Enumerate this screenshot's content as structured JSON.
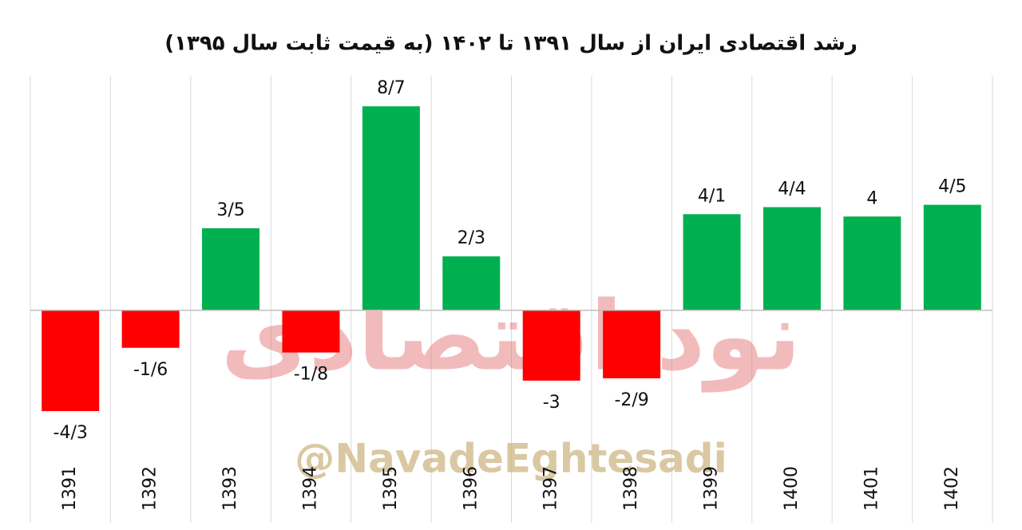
{
  "chart_data": {
    "type": "bar",
    "title": "رشد اقتصادی ایران از سال ۱۳۹۱ تا ۱۴۰۲ (به قیمت ثابت سال ۱۳۹۵)",
    "categories": [
      "1391",
      "1392",
      "1393",
      "1394",
      "1395",
      "1396",
      "1397",
      "1398",
      "1399",
      "1400",
      "1401",
      "1402"
    ],
    "values": [
      -4.3,
      -1.6,
      3.5,
      -1.8,
      8.7,
      2.3,
      -3,
      -2.9,
      4.1,
      4.4,
      4,
      4.5
    ],
    "value_labels": [
      "-4/3",
      "-1/6",
      "3/5",
      "-1/8",
      "8/7",
      "2/3",
      "-3",
      "-2/9",
      "4/1",
      "4/4",
      "4",
      "4/5"
    ],
    "colors": [
      "#ff0000",
      "#ff0000",
      "#00b050",
      "#ff0000",
      "#00b050",
      "#00b050",
      "#ff0000",
      "#ff0000",
      "#00b050",
      "#00b050",
      "#00b050",
      "#00b050"
    ],
    "ylim": [
      -6,
      10
    ],
    "grid": true,
    "watermarks": [
      "نود اقتصادی",
      "@NavadeEghtesadi"
    ]
  }
}
